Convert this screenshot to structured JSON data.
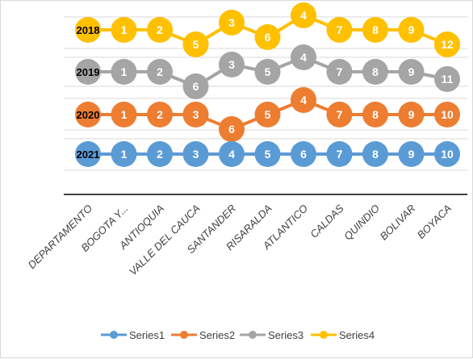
{
  "chart_data": {
    "type": "line",
    "categories": [
      "DEPARTAMENTO",
      "BOGOTA Y...",
      "ANTIOQUIA",
      "VALLE DEL CAUCA",
      "SANTANDER",
      "RISARALDA",
      "ATLANTICO",
      "CALDAS",
      "QUINDIO",
      "BOLIVAR",
      "BOYACA"
    ],
    "series": [
      {
        "name": "Series1",
        "color": "#5b9bd5",
        "first_label": "2021",
        "values": [
          null,
          1,
          2,
          3,
          4,
          5,
          6,
          7,
          8,
          9,
          10
        ]
      },
      {
        "name": "Series2",
        "color": "#ed7d31",
        "first_label": "2020",
        "values": [
          null,
          1,
          2,
          3,
          6,
          5,
          4,
          7,
          8,
          9,
          10
        ]
      },
      {
        "name": "Series3",
        "color": "#a5a5a5",
        "first_label": "2019",
        "values": [
          null,
          1,
          2,
          6,
          3,
          5,
          4,
          7,
          8,
          9,
          11
        ]
      },
      {
        "name": "Series4",
        "color": "#ffc000",
        "first_label": "2018",
        "values": [
          null,
          1,
          2,
          5,
          3,
          6,
          4,
          7,
          8,
          9,
          12
        ]
      }
    ],
    "grid": true,
    "legend_position": "bottom"
  }
}
